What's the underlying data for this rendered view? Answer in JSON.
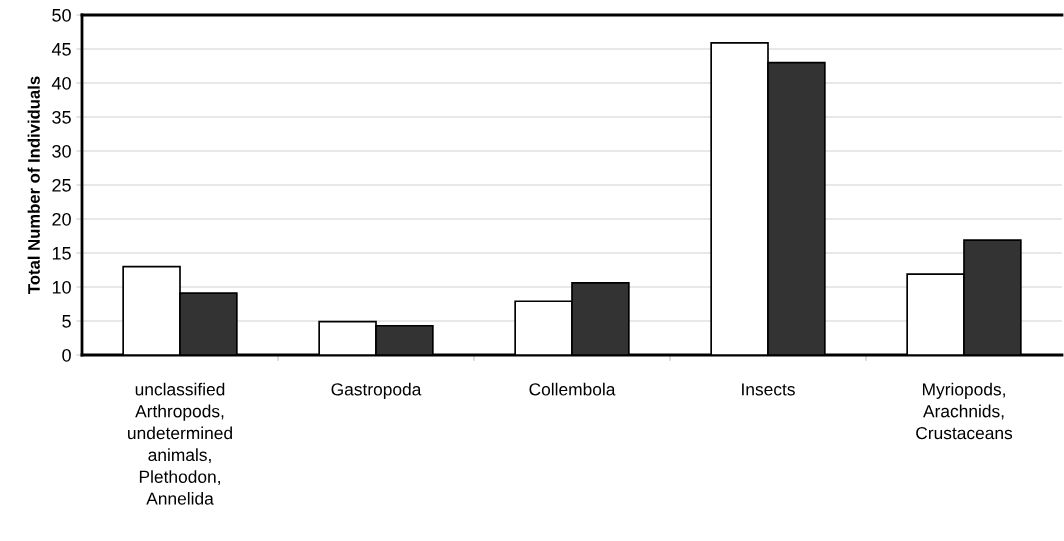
{
  "chart_data": {
    "type": "bar",
    "ylabel": "Total Number of Individuals",
    "categories": [
      "unclassified\nArthropods,\nundetermined\nanimals,\nPlethodon,\nAnnelida",
      "Gastropoda",
      "Collembola",
      "Insects",
      "Myriopods,\nArachnids,\nCrustaceans"
    ],
    "series": [
      {
        "color": "#ffffff",
        "values": [
          13.0,
          4.9,
          7.9,
          45.9,
          11.9
        ]
      },
      {
        "color": "#333333",
        "values": [
          9.1,
          4.3,
          10.6,
          43.0,
          16.9
        ]
      }
    ],
    "ylim": [
      0,
      50
    ],
    "yticks": [
      0,
      5,
      10,
      15,
      20,
      25,
      30,
      35,
      40,
      45,
      50
    ],
    "grid": "y",
    "legend": false
  }
}
